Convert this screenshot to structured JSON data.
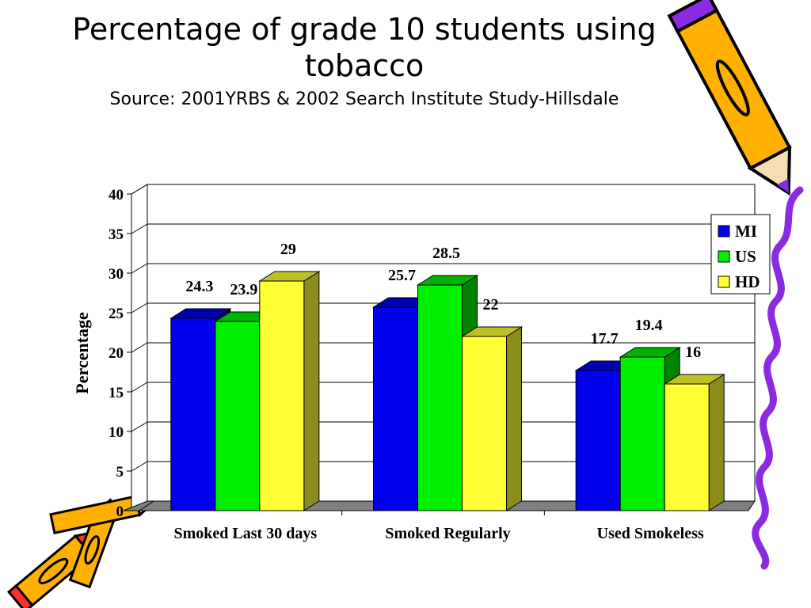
{
  "title": {
    "main": "Percentage of grade 10 students using tobacco",
    "source": "Source: 2001YRBS & 2002 Search Institute Study-Hillsdale"
  },
  "colors": {
    "MI": "#0000ee",
    "US": "#00ee00",
    "HD": "#ffff33",
    "floor": "#808080",
    "grid": "#000000"
  },
  "icons": [
    "pencil-icon-top-right",
    "crayon-icon-bottom-left",
    "squiggle-border-right"
  ],
  "chart_data": {
    "type": "bar",
    "title": "Percentage of grade 10 students using tobacco",
    "subtitle": "Source: 2001YRBS & 2002 Search Institute Study-Hillsdale",
    "xlabel": "",
    "ylabel": "Percentage",
    "ylim": [
      0,
      40
    ],
    "yticks": [
      "0",
      "5",
      "10",
      "15",
      "20",
      "25",
      "30",
      "35",
      "40"
    ],
    "grid": true,
    "legend_position": "right",
    "categories": [
      "Smoked Last 30 days",
      "Smoked Regularly",
      "Used Smokeless"
    ],
    "series": [
      {
        "name": "MI",
        "values": [
          24.3,
          25.7,
          17.7
        ]
      },
      {
        "name": "US",
        "values": [
          23.9,
          28.5,
          19.4
        ]
      },
      {
        "name": "HD",
        "values": [
          29,
          22,
          16
        ]
      }
    ]
  }
}
